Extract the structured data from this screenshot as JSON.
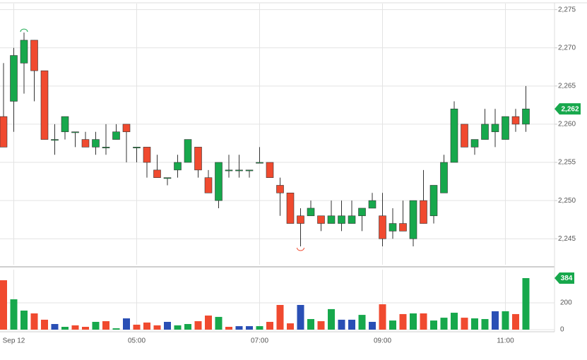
{
  "chart_data": {
    "type": "candlestick",
    "categories": [
      null,
      "Sep 12",
      null,
      null,
      null,
      null,
      null,
      null,
      null,
      null,
      null,
      null,
      null,
      "05:00",
      null,
      null,
      null,
      null,
      null,
      null,
      null,
      null,
      null,
      null,
      null,
      "07:00",
      null,
      null,
      null,
      null,
      null,
      null,
      null,
      null,
      null,
      null,
      null,
      "09:00",
      null,
      null,
      null,
      null,
      null,
      null,
      null,
      null,
      null,
      null,
      null,
      "11:00",
      null,
      null
    ],
    "open": [
      2261,
      2263,
      2268,
      2271,
      2267,
      2258,
      2259,
      2259,
      2258,
      2257,
      2257,
      2258,
      2260,
      2257,
      2257,
      2254,
      2253,
      2254,
      2255,
      2257,
      2253,
      2250,
      2254,
      2254,
      2254,
      2255,
      2255,
      2252,
      2251,
      2248,
      2248,
      2248,
      2247,
      2247,
      2247,
      2248,
      2249,
      2248,
      2246,
      2247,
      2245,
      2250,
      2248,
      2251,
      2255,
      2260,
      2257,
      2258,
      2259,
      2258,
      2261,
      2260
    ],
    "high": [
      2268,
      2270,
      2272,
      2271,
      2267,
      2260,
      2261,
      2259,
      2259,
      2259,
      2260,
      2260,
      2260,
      2257,
      2257,
      2256,
      2253,
      2256,
      2258,
      2257,
      2254,
      2255,
      2256,
      2256,
      2254,
      2257,
      2255,
      2253,
      2251,
      2249,
      2250,
      2248,
      2250,
      2250,
      2250,
      2249,
      2251,
      2251,
      2249,
      2250,
      2250,
      2254,
      2252,
      2256,
      2263,
      2260,
      2258,
      2262,
      2262,
      2261,
      2262,
      2265
    ],
    "low": [
      2257,
      2259,
      2264,
      2263,
      2258,
      2256,
      2258,
      2257,
      2257,
      2256,
      2256,
      2258,
      2255,
      2255,
      2253,
      2253,
      2252,
      2253,
      2255,
      2253,
      2251,
      2249,
      2253,
      2253,
      2253,
      2255,
      2253,
      2248,
      2247,
      2244,
      2248,
      2246,
      2247,
      2246,
      2247,
      2246,
      2249,
      2244,
      2245,
      2246,
      2244,
      2247,
      2247,
      2251,
      2255,
      2257,
      2256,
      2258,
      2257,
      2258,
      2259,
      2259
    ],
    "close": [
      2257,
      2269,
      2271,
      2267,
      2258,
      2258,
      2261,
      2259,
      2257,
      2258,
      2257,
      2259,
      2259,
      2257,
      2255,
      2253,
      2253,
      2255,
      2258,
      2254,
      2251,
      2255,
      2254,
      2254,
      2254,
      2255,
      2253,
      2251,
      2247,
      2247,
      2249,
      2247,
      2248,
      2248,
      2248,
      2249,
      2250,
      2245,
      2247,
      2246,
      2250,
      2247,
      2252,
      2255,
      2262,
      2257,
      2258,
      2260,
      2260,
      2261,
      2260,
      2262
    ],
    "up_color": "#17a84c",
    "down_color": "#f04a2f",
    "ylim": [
      2241.6,
      2275.8
    ],
    "yticks": [
      {
        "value": 2245,
        "label": "2,245"
      },
      {
        "value": 2250,
        "label": "2,250"
      },
      {
        "value": 2255,
        "label": "2,255"
      },
      {
        "value": 2260,
        "label": "2,260"
      },
      {
        "value": 2265,
        "label": "2,265"
      },
      {
        "value": 2270,
        "label": "2,270"
      },
      {
        "value": 2275,
        "label": "2,275"
      }
    ],
    "last_price": {
      "value": 2262,
      "label": "2,262"
    },
    "volume": {
      "values": [
        368,
        226,
        142,
        121,
        74,
        42,
        21,
        32,
        21,
        58,
        63,
        10,
        84,
        37,
        53,
        32,
        58,
        32,
        42,
        63,
        105,
        95,
        21,
        26,
        26,
        26,
        58,
        184,
        47,
        184,
        79,
        63,
        153,
        74,
        74,
        110,
        58,
        189,
        68,
        116,
        121,
        121,
        68,
        89,
        126,
        89,
        84,
        79,
        137,
        137,
        116,
        384
      ],
      "colors": [
        "#f04a2f",
        "#17a84c",
        "#17a84c",
        "#f04a2f",
        "#f04a2f",
        "#2a4fb5",
        "#17a84c",
        "#f04a2f",
        "#f04a2f",
        "#17a84c",
        "#f04a2f",
        "#17a84c",
        "#2a4fb5",
        "#f04a2f",
        "#f04a2f",
        "#f04a2f",
        "#2a4fb5",
        "#17a84c",
        "#17a84c",
        "#f04a2f",
        "#f04a2f",
        "#17a84c",
        "#f04a2f",
        "#2a4fb5",
        "#2a4fb5",
        "#17a84c",
        "#f04a2f",
        "#f04a2f",
        "#f04a2f",
        "#2a4fb5",
        "#17a84c",
        "#f04a2f",
        "#17a84c",
        "#2a4fb5",
        "#2a4fb5",
        "#17a84c",
        "#2a4fb5",
        "#f04a2f",
        "#17a84c",
        "#f04a2f",
        "#17a84c",
        "#f04a2f",
        "#17a84c",
        "#17a84c",
        "#17a84c",
        "#f04a2f",
        "#17a84c",
        "#17a84c",
        "#2a4fb5",
        "#17a84c",
        "#f04a2f",
        "#17a84c"
      ],
      "ylim": [
        0,
        447
      ],
      "yticks": [
        0,
        200
      ]
    },
    "grid": true
  }
}
